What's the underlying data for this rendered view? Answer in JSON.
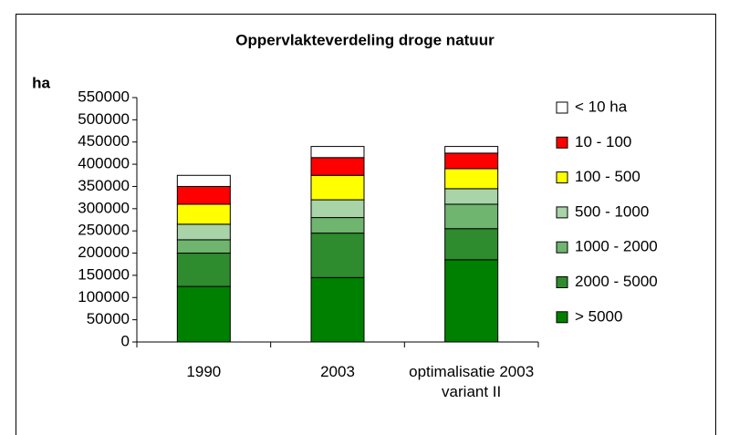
{
  "chart_data": {
    "type": "stacked_bar",
    "title": "Oppervlakteverdeling droge natuur",
    "y_label": "ha",
    "categories": [
      "1990",
      "2003",
      "optimalisatie 2003 variant II"
    ],
    "series": [
      {
        "name": "> 5000",
        "color": "#008000",
        "values": [
          125000,
          145000,
          185000
        ]
      },
      {
        "name": "2000 - 5000",
        "color": "#2e8b2e",
        "values": [
          75000,
          100000,
          70000
        ]
      },
      {
        "name": "1000 - 2000",
        "color": "#6fb46f",
        "values": [
          30000,
          35000,
          55000
        ]
      },
      {
        "name": "500 - 1000",
        "color": "#a8d4a8",
        "values": [
          35000,
          40000,
          35000
        ]
      },
      {
        "name": "100 - 500",
        "color": "#ffff00",
        "values": [
          45000,
          55000,
          45000
        ]
      },
      {
        "name": "10 - 100",
        "color": "#ff0000",
        "values": [
          40000,
          40000,
          35000
        ]
      },
      {
        "name": "< 10 ha",
        "color": "#ffffff",
        "values": [
          25000,
          25000,
          15000
        ]
      }
    ],
    "ylim": [
      0,
      550000
    ],
    "yticks": [
      0,
      50000,
      100000,
      150000,
      200000,
      250000,
      300000,
      350000,
      400000,
      450000,
      500000,
      550000
    ],
    "grid": false,
    "legend": "right"
  }
}
